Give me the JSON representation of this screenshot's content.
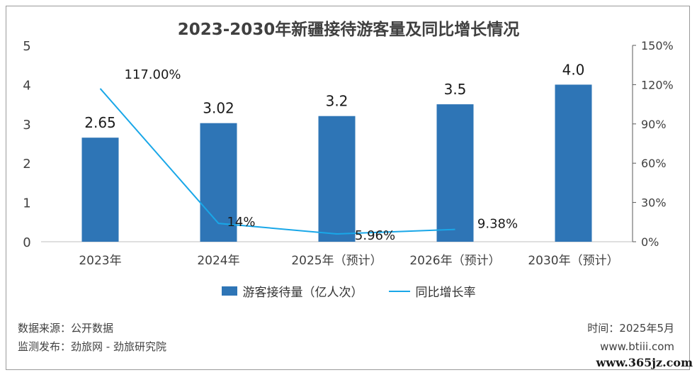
{
  "chart_data": {
    "type": "bar",
    "title": "2023-2030年新疆接待游客量及同比增长情况",
    "categories": [
      "2023年",
      "2024年",
      "2025年（预计）",
      "2026年（预计）",
      "2030年（预计）"
    ],
    "series": [
      {
        "name": "游客接待量（亿人次）",
        "type": "bar",
        "axis": "left",
        "color": "#2E75B6",
        "values": [
          2.65,
          3.02,
          3.2,
          3.5,
          4.0
        ],
        "labels": [
          "2.65",
          "3.02",
          "3.2",
          "3.5",
          "4.0"
        ]
      },
      {
        "name": "同比增长率",
        "type": "line",
        "axis": "right",
        "color": "#19A7E8",
        "values": [
          117.0,
          14,
          5.96,
          9.38,
          null
        ],
        "labels": [
          "117.00%",
          "14%",
          "5.96%",
          "9.38%",
          null
        ]
      }
    ],
    "y_left": {
      "ylim": [
        0,
        5
      ],
      "ticks": [
        "0",
        "1",
        "2",
        "3",
        "4",
        "5"
      ]
    },
    "y_right": {
      "ylim": [
        0,
        150
      ],
      "ticks": [
        "0%",
        "30%",
        "60%",
        "90%",
        "120%",
        "150%"
      ]
    },
    "legend_position": "bottom",
    "grid": false
  },
  "footer": {
    "source": "数据来源：公开数据",
    "monitor": "监测发布：劲旅网 - 劲旅研究院",
    "time": "时间：2025年5月",
    "site": "www.btiii.com"
  },
  "watermark": "www.365jz.com"
}
